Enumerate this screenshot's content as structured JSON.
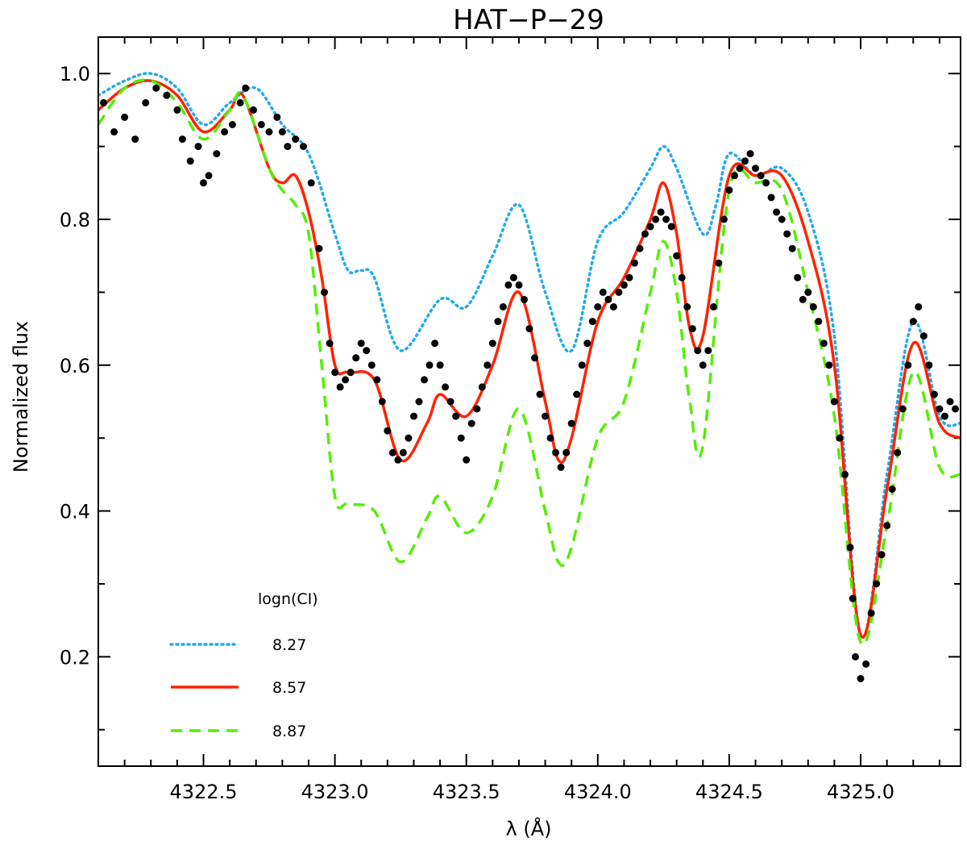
{
  "chart_data": {
    "type": "line",
    "title": "HAT−P−29",
    "xlabel": "λ (Å)",
    "ylabel": "Normalized flux",
    "xlim": [
      4322.1,
      4325.38
    ],
    "ylim": [
      0.05,
      1.05
    ],
    "x_ticks": [
      4322.5,
      4323.0,
      4323.5,
      4324.0,
      4324.5,
      4325.0
    ],
    "x_tick_labels": [
      "4322.5",
      "4323.0",
      "4323.5",
      "4324.0",
      "4324.5",
      "4325.0"
    ],
    "y_ticks": [
      0.2,
      0.4,
      0.6,
      0.8,
      1.0
    ],
    "y_tick_labels": [
      "0.2",
      "0.4",
      "0.6",
      "0.8",
      "1.0"
    ],
    "grid": false,
    "legend": {
      "title": "logn(CI)",
      "placement": "bottom-left",
      "entries": [
        "8.27",
        "8.57",
        "8.87"
      ]
    },
    "series": [
      {
        "name": "8.27",
        "color": "#22aaee",
        "style": "dotted",
        "points": [
          [
            4322.1,
            0.97
          ],
          [
            4322.2,
            0.99
          ],
          [
            4322.3,
            1.0
          ],
          [
            4322.4,
            0.98
          ],
          [
            4322.5,
            0.93
          ],
          [
            4322.6,
            0.96
          ],
          [
            4322.7,
            0.98
          ],
          [
            4322.8,
            0.93
          ],
          [
            4322.9,
            0.89
          ],
          [
            4323.0,
            0.78
          ],
          [
            4323.05,
            0.73
          ],
          [
            4323.1,
            0.73
          ],
          [
            4323.15,
            0.72
          ],
          [
            4323.25,
            0.62
          ],
          [
            4323.4,
            0.69
          ],
          [
            4323.5,
            0.68
          ],
          [
            4323.6,
            0.75
          ],
          [
            4323.7,
            0.82
          ],
          [
            4323.8,
            0.7
          ],
          [
            4323.9,
            0.62
          ],
          [
            4324.0,
            0.77
          ],
          [
            4324.1,
            0.81
          ],
          [
            4324.2,
            0.87
          ],
          [
            4324.25,
            0.9
          ],
          [
            4324.3,
            0.87
          ],
          [
            4324.4,
            0.78
          ],
          [
            4324.45,
            0.82
          ],
          [
            4324.5,
            0.89
          ],
          [
            4324.6,
            0.86
          ],
          [
            4324.7,
            0.87
          ],
          [
            4324.8,
            0.81
          ],
          [
            4324.9,
            0.64
          ],
          [
            4325.0,
            0.23
          ],
          [
            4325.1,
            0.45
          ],
          [
            4325.2,
            0.66
          ],
          [
            4325.3,
            0.53
          ],
          [
            4325.38,
            0.52
          ]
        ]
      },
      {
        "name": "8.57",
        "color": "#ff2200",
        "style": "solid",
        "points": [
          [
            4322.1,
            0.95
          ],
          [
            4322.2,
            0.98
          ],
          [
            4322.3,
            0.99
          ],
          [
            4322.4,
            0.97
          ],
          [
            4322.5,
            0.92
          ],
          [
            4322.6,
            0.95
          ],
          [
            4322.65,
            0.97
          ],
          [
            4322.75,
            0.87
          ],
          [
            4322.8,
            0.85
          ],
          [
            4322.85,
            0.86
          ],
          [
            4322.9,
            0.81
          ],
          [
            4322.95,
            0.72
          ],
          [
            4323.0,
            0.6
          ],
          [
            4323.05,
            0.59
          ],
          [
            4323.15,
            0.58
          ],
          [
            4323.25,
            0.47
          ],
          [
            4323.35,
            0.52
          ],
          [
            4323.4,
            0.56
          ],
          [
            4323.5,
            0.53
          ],
          [
            4323.6,
            0.6
          ],
          [
            4323.7,
            0.7
          ],
          [
            4323.8,
            0.55
          ],
          [
            4323.85,
            0.47
          ],
          [
            4323.9,
            0.5
          ],
          [
            4324.0,
            0.66
          ],
          [
            4324.1,
            0.72
          ],
          [
            4324.2,
            0.8
          ],
          [
            4324.25,
            0.85
          ],
          [
            4324.3,
            0.78
          ],
          [
            4324.35,
            0.65
          ],
          [
            4324.4,
            0.64
          ],
          [
            4324.5,
            0.86
          ],
          [
            4324.6,
            0.86
          ],
          [
            4324.7,
            0.86
          ],
          [
            4324.8,
            0.77
          ],
          [
            4324.9,
            0.6
          ],
          [
            4325.0,
            0.23
          ],
          [
            4325.1,
            0.43
          ],
          [
            4325.2,
            0.63
          ],
          [
            4325.3,
            0.52
          ],
          [
            4325.38,
            0.5
          ]
        ]
      },
      {
        "name": "8.87",
        "color": "#55ee00",
        "style": "dashed",
        "points": [
          [
            4322.1,
            0.93
          ],
          [
            4322.2,
            0.98
          ],
          [
            4322.3,
            0.99
          ],
          [
            4322.4,
            0.96
          ],
          [
            4322.5,
            0.91
          ],
          [
            4322.6,
            0.95
          ],
          [
            4322.65,
            0.97
          ],
          [
            4322.75,
            0.87
          ],
          [
            4322.8,
            0.84
          ],
          [
            4322.85,
            0.82
          ],
          [
            4322.9,
            0.78
          ],
          [
            4322.95,
            0.6
          ],
          [
            4323.0,
            0.42
          ],
          [
            4323.05,
            0.41
          ],
          [
            4323.15,
            0.4
          ],
          [
            4323.25,
            0.33
          ],
          [
            4323.35,
            0.39
          ],
          [
            4323.4,
            0.42
          ],
          [
            4323.5,
            0.37
          ],
          [
            4323.6,
            0.42
          ],
          [
            4323.7,
            0.54
          ],
          [
            4323.8,
            0.4
          ],
          [
            4323.85,
            0.33
          ],
          [
            4323.9,
            0.35
          ],
          [
            4324.0,
            0.5
          ],
          [
            4324.1,
            0.55
          ],
          [
            4324.2,
            0.7
          ],
          [
            4324.25,
            0.77
          ],
          [
            4324.3,
            0.7
          ],
          [
            4324.35,
            0.55
          ],
          [
            4324.4,
            0.49
          ],
          [
            4324.5,
            0.84
          ],
          [
            4324.6,
            0.85
          ],
          [
            4324.7,
            0.84
          ],
          [
            4324.8,
            0.7
          ],
          [
            4324.9,
            0.53
          ],
          [
            4325.0,
            0.22
          ],
          [
            4325.1,
            0.38
          ],
          [
            4325.2,
            0.59
          ],
          [
            4325.3,
            0.46
          ],
          [
            4325.38,
            0.45
          ]
        ]
      },
      {
        "name": "",
        "color": "#000000",
        "style": "markers",
        "points": [
          [
            4322.12,
            0.96
          ],
          [
            4322.16,
            0.92
          ],
          [
            4322.2,
            0.94
          ],
          [
            4322.24,
            0.91
          ],
          [
            4322.28,
            0.96
          ],
          [
            4322.32,
            0.98
          ],
          [
            4322.36,
            0.97
          ],
          [
            4322.4,
            0.95
          ],
          [
            4322.42,
            0.91
          ],
          [
            4322.45,
            0.88
          ],
          [
            4322.48,
            0.9
          ],
          [
            4322.5,
            0.85
          ],
          [
            4322.52,
            0.86
          ],
          [
            4322.55,
            0.89
          ],
          [
            4322.58,
            0.92
          ],
          [
            4322.61,
            0.93
          ],
          [
            4322.64,
            0.96
          ],
          [
            4322.66,
            0.98
          ],
          [
            4322.69,
            0.95
          ],
          [
            4322.72,
            0.93
          ],
          [
            4322.75,
            0.92
          ],
          [
            4322.78,
            0.94
          ],
          [
            4322.8,
            0.92
          ],
          [
            4322.82,
            0.9
          ],
          [
            4322.85,
            0.91
          ],
          [
            4322.88,
            0.9
          ],
          [
            4322.91,
            0.85
          ],
          [
            4322.94,
            0.76
          ],
          [
            4322.96,
            0.7
          ],
          [
            4322.98,
            0.63
          ],
          [
            4323.0,
            0.59
          ],
          [
            4323.02,
            0.57
          ],
          [
            4323.04,
            0.58
          ],
          [
            4323.06,
            0.59
          ],
          [
            4323.08,
            0.61
          ],
          [
            4323.1,
            0.63
          ],
          [
            4323.12,
            0.62
          ],
          [
            4323.14,
            0.6
          ],
          [
            4323.16,
            0.58
          ],
          [
            4323.18,
            0.55
          ],
          [
            4323.2,
            0.51
          ],
          [
            4323.22,
            0.48
          ],
          [
            4323.24,
            0.47
          ],
          [
            4323.26,
            0.48
          ],
          [
            4323.28,
            0.5
          ],
          [
            4323.3,
            0.53
          ],
          [
            4323.32,
            0.55
          ],
          [
            4323.34,
            0.58
          ],
          [
            4323.36,
            0.6
          ],
          [
            4323.38,
            0.63
          ],
          [
            4323.4,
            0.6
          ],
          [
            4323.42,
            0.57
          ],
          [
            4323.44,
            0.55
          ],
          [
            4323.46,
            0.53
          ],
          [
            4323.48,
            0.5
          ],
          [
            4323.5,
            0.47
          ],
          [
            4323.52,
            0.52
          ],
          [
            4323.54,
            0.54
          ],
          [
            4323.56,
            0.57
          ],
          [
            4323.58,
            0.6
          ],
          [
            4323.6,
            0.63
          ],
          [
            4323.62,
            0.66
          ],
          [
            4323.64,
            0.68
          ],
          [
            4323.66,
            0.71
          ],
          [
            4323.68,
            0.72
          ],
          [
            4323.7,
            0.71
          ],
          [
            4323.72,
            0.69
          ],
          [
            4323.74,
            0.65
          ],
          [
            4323.76,
            0.61
          ],
          [
            4323.78,
            0.56
          ],
          [
            4323.8,
            0.53
          ],
          [
            4323.82,
            0.5
          ],
          [
            4323.84,
            0.48
          ],
          [
            4323.86,
            0.46
          ],
          [
            4323.88,
            0.48
          ],
          [
            4323.9,
            0.52
          ],
          [
            4323.92,
            0.56
          ],
          [
            4323.94,
            0.6
          ],
          [
            4323.96,
            0.63
          ],
          [
            4323.98,
            0.66
          ],
          [
            4324.0,
            0.68
          ],
          [
            4324.02,
            0.7
          ],
          [
            4324.04,
            0.69
          ],
          [
            4324.06,
            0.68
          ],
          [
            4324.08,
            0.7
          ],
          [
            4324.1,
            0.71
          ],
          [
            4324.12,
            0.72
          ],
          [
            4324.14,
            0.74
          ],
          [
            4324.16,
            0.76
          ],
          [
            4324.18,
            0.78
          ],
          [
            4324.2,
            0.79
          ],
          [
            4324.22,
            0.8
          ],
          [
            4324.24,
            0.81
          ],
          [
            4324.26,
            0.8
          ],
          [
            4324.28,
            0.79
          ],
          [
            4324.3,
            0.75
          ],
          [
            4324.32,
            0.72
          ],
          [
            4324.34,
            0.68
          ],
          [
            4324.36,
            0.65
          ],
          [
            4324.38,
            0.62
          ],
          [
            4324.4,
            0.6
          ],
          [
            4324.42,
            0.62
          ],
          [
            4324.44,
            0.68
          ],
          [
            4324.46,
            0.74
          ],
          [
            4324.48,
            0.8
          ],
          [
            4324.5,
            0.84
          ],
          [
            4324.52,
            0.86
          ],
          [
            4324.54,
            0.87
          ],
          [
            4324.56,
            0.88
          ],
          [
            4324.58,
            0.89
          ],
          [
            4324.6,
            0.87
          ],
          [
            4324.62,
            0.86
          ],
          [
            4324.64,
            0.85
          ],
          [
            4324.66,
            0.83
          ],
          [
            4324.68,
            0.81
          ],
          [
            4324.7,
            0.8
          ],
          [
            4324.72,
            0.78
          ],
          [
            4324.74,
            0.76
          ],
          [
            4324.76,
            0.72
          ],
          [
            4324.78,
            0.69
          ],
          [
            4324.8,
            0.7
          ],
          [
            4324.82,
            0.68
          ],
          [
            4324.84,
            0.66
          ],
          [
            4324.86,
            0.63
          ],
          [
            4324.88,
            0.6
          ],
          [
            4324.9,
            0.55
          ],
          [
            4324.92,
            0.5
          ],
          [
            4324.94,
            0.45
          ],
          [
            4324.96,
            0.35
          ],
          [
            4324.97,
            0.28
          ],
          [
            4324.98,
            0.2
          ],
          [
            4325.0,
            0.17
          ],
          [
            4325.02,
            0.19
          ],
          [
            4325.04,
            0.26
          ],
          [
            4325.06,
            0.3
          ],
          [
            4325.08,
            0.34
          ],
          [
            4325.1,
            0.38
          ],
          [
            4325.12,
            0.43
          ],
          [
            4325.14,
            0.48
          ],
          [
            4325.16,
            0.54
          ],
          [
            4325.18,
            0.6
          ],
          [
            4325.2,
            0.66
          ],
          [
            4325.22,
            0.68
          ],
          [
            4325.24,
            0.64
          ],
          [
            4325.26,
            0.6
          ],
          [
            4325.28,
            0.56
          ],
          [
            4325.3,
            0.54
          ],
          [
            4325.32,
            0.53
          ],
          [
            4325.34,
            0.55
          ],
          [
            4325.36,
            0.54
          ]
        ]
      }
    ]
  }
}
